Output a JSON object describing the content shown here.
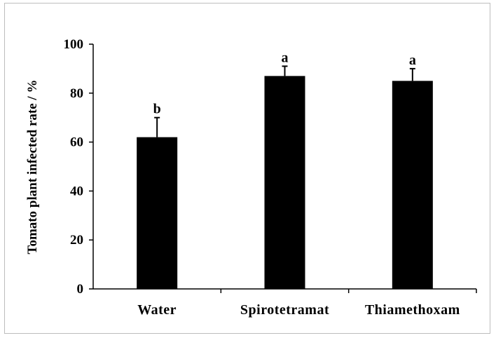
{
  "chart_data": {
    "type": "bar",
    "title": "",
    "xlabel": "",
    "ylabel": "Tomato plant infected rate / %",
    "ylim": [
      0,
      100
    ],
    "yticks": [
      0,
      20,
      40,
      60,
      80,
      100
    ],
    "grid": false,
    "legend": "none",
    "categories": [
      "Water",
      "Spirotetramat",
      "Thiamethoxam"
    ],
    "series": [
      {
        "values": [
          62,
          87,
          85
        ],
        "error": [
          8,
          4,
          5
        ],
        "significance": [
          "b",
          "a",
          "a"
        ],
        "color": "#000000"
      }
    ]
  }
}
